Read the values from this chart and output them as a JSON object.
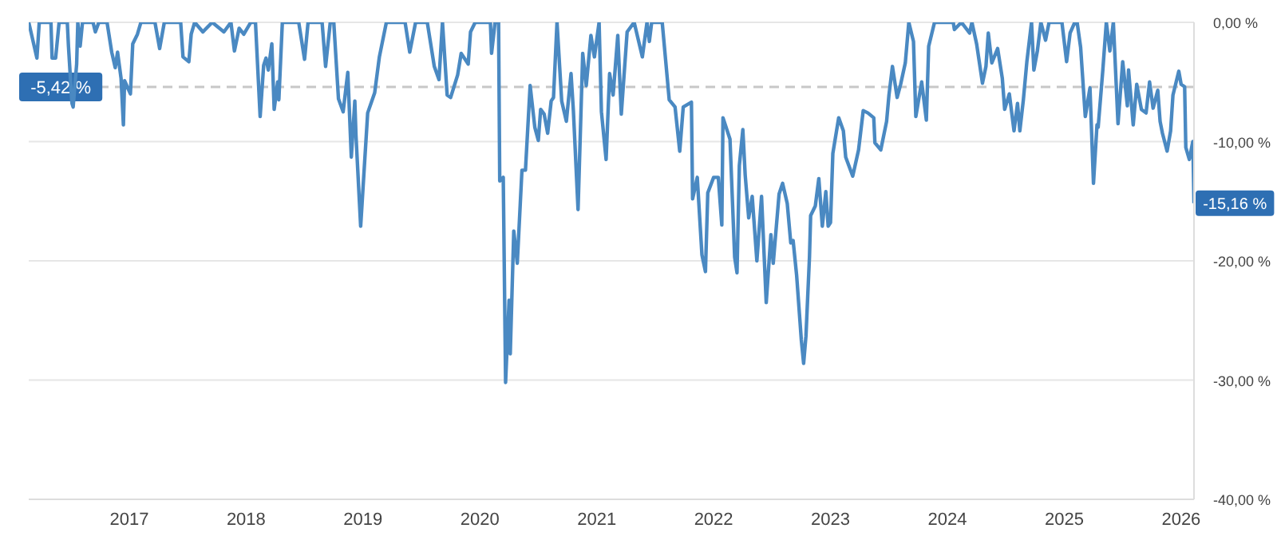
{
  "chart_data": {
    "type": "line",
    "x": [
      2016.14,
      2016.21,
      2016.23,
      2016.33,
      2016.34,
      2016.37,
      2016.4,
      2016.47,
      2016.48,
      2016.51,
      2016.52,
      2016.55,
      2016.56,
      2016.58,
      2016.6,
      2016.69,
      2016.71,
      2016.74,
      2016.81,
      2016.85,
      2016.88,
      2016.9,
      2016.93,
      2016.95,
      2016.96,
      2017.01,
      2017.03,
      2017.07,
      2017.1,
      2017.22,
      2017.26,
      2017.3,
      2017.44,
      2017.46,
      2017.51,
      2017.53,
      2017.56,
      2017.63,
      2017.71,
      2017.81,
      2017.87,
      2017.9,
      2017.94,
      2017.98,
      2018.04,
      2018.08,
      2018.12,
      2018.15,
      2018.17,
      2018.19,
      2018.22,
      2018.24,
      2018.27,
      2018.28,
      2018.31,
      2018.45,
      2018.5,
      2018.53,
      2018.65,
      2018.68,
      2018.72,
      2018.75,
      2018.79,
      2018.83,
      2018.87,
      2018.9,
      2018.93,
      2018.94,
      2018.98,
      2019.04,
      2019.1,
      2019.14,
      2019.2,
      2019.36,
      2019.4,
      2019.45,
      2019.55,
      2019.61,
      2019.65,
      2019.68,
      2019.72,
      2019.75,
      2019.81,
      2019.84,
      2019.9,
      2019.92,
      2019.96,
      2020.09,
      2020.1,
      2020.13,
      2020.16,
      2020.17,
      2020.2,
      2020.22,
      2020.25,
      2020.26,
      2020.29,
      2020.32,
      2020.36,
      2020.39,
      2020.43,
      2020.47,
      2020.5,
      2020.52,
      2020.55,
      2020.58,
      2020.61,
      2020.63,
      2020.66,
      2020.7,
      2020.74,
      2020.78,
      2020.8,
      2020.84,
      2020.88,
      2020.91,
      2020.95,
      2020.98,
      2021.02,
      2021.04,
      2021.08,
      2021.11,
      2021.14,
      2021.18,
      2021.21,
      2021.26,
      2021.32,
      2021.39,
      2021.43,
      2021.45,
      2021.47,
      2021.56,
      2021.62,
      2021.67,
      2021.71,
      2021.74,
      2021.81,
      2021.82,
      2021.86,
      2021.9,
      2021.93,
      2021.95,
      2022.0,
      2022.04,
      2022.07,
      2022.08,
      2022.14,
      2022.18,
      2022.2,
      2022.22,
      2022.25,
      2022.27,
      2022.3,
      2022.33,
      2022.37,
      2022.41,
      2022.45,
      2022.49,
      2022.51,
      2022.56,
      2022.59,
      2022.63,
      2022.66,
      2022.68,
      2022.71,
      2022.75,
      2022.77,
      2022.79,
      2022.82,
      2022.83,
      2022.87,
      2022.9,
      2022.93,
      2022.96,
      2022.98,
      2023.0,
      2023.02,
      2023.07,
      2023.11,
      2023.13,
      2023.19,
      2023.24,
      2023.28,
      2023.32,
      2023.37,
      2023.38,
      2023.43,
      2023.48,
      2023.5,
      2023.53,
      2023.57,
      2023.6,
      2023.64,
      2023.67,
      2023.71,
      2023.73,
      2023.78,
      2023.82,
      2023.84,
      2023.89,
      2024.05,
      2024.06,
      2024.12,
      2024.19,
      2024.21,
      2024.25,
      2024.3,
      2024.33,
      2024.35,
      2024.38,
      2024.43,
      2024.47,
      2024.49,
      2024.53,
      2024.57,
      2024.6,
      2024.62,
      2024.65,
      2024.68,
      2024.72,
      2024.74,
      2024.77,
      2024.8,
      2024.84,
      2024.87,
      2024.98,
      2025.02,
      2025.05,
      2025.09,
      2025.11,
      2025.14,
      2025.18,
      2025.22,
      2025.25,
      2025.28,
      2025.29,
      2025.33,
      2025.36,
      2025.39,
      2025.42,
      2025.46,
      2025.5,
      2025.54,
      2025.55,
      2025.59,
      2025.62,
      2025.66,
      2025.7,
      2025.73,
      2025.76,
      2025.8,
      2025.82,
      2025.84,
      2025.88,
      2025.91,
      2025.93,
      2025.98,
      2026.0,
      2026.03,
      2026.04,
      2026.07,
      2026.1,
      2026.11
    ],
    "series": [
      {
        "color": "#4a89c2",
        "values": [
          0,
          -3.0,
          0,
          0,
          -3.0,
          -3.0,
          0,
          0,
          -2.0,
          -6.8,
          -7.1,
          -3.5,
          0,
          -2.0,
          0,
          0,
          -0.8,
          0,
          0,
          -2.5,
          -3.8,
          -2.5,
          -4.7,
          -8.6,
          -4.9,
          -6.0,
          -1.8,
          -1.0,
          0,
          0,
          -2.2,
          0,
          0,
          -2.9,
          -3.3,
          -1.0,
          0,
          -0.8,
          0,
          -0.8,
          0,
          -2.4,
          -0.5,
          -1.0,
          0,
          0,
          -7.9,
          -3.6,
          -3.0,
          -4.0,
          -1.8,
          -7.3,
          -5.0,
          -6.5,
          0,
          0,
          -3.1,
          0,
          0,
          -3.7,
          0,
          0,
          -6.4,
          -7.5,
          -4.2,
          -11.3,
          -6.6,
          -9.5,
          -17.1,
          -7.6,
          -5.9,
          -2.9,
          0,
          0,
          -2.5,
          0,
          0,
          -3.7,
          -4.8,
          0,
          -6.1,
          -6.3,
          -4.4,
          -2.6,
          -3.5,
          -0.8,
          0,
          0,
          -2.6,
          0,
          0,
          -13.3,
          -13.0,
          -30.2,
          -23.3,
          -27.8,
          -17.5,
          -20.2,
          -12.4,
          -12.4,
          -5.3,
          -8.8,
          -9.9,
          -7.3,
          -7.7,
          -9.3,
          -6.6,
          -6.3,
          0,
          -6.6,
          -8.3,
          -4.3,
          -7.4,
          -15.7,
          -2.6,
          -5.3,
          -1.1,
          -2.9,
          0,
          -7.5,
          -11.5,
          -4.3,
          -6.1,
          -1.1,
          -7.7,
          -0.8,
          0,
          -2.9,
          0,
          -1.6,
          0,
          0,
          -6.5,
          -7.1,
          -10.8,
          -7.1,
          -6.7,
          -14.8,
          -13.0,
          -19.5,
          -20.9,
          -14.3,
          -13.0,
          -13.0,
          -17.0,
          -8.0,
          -9.8,
          -19.7,
          -21.0,
          -12.0,
          -9.0,
          -12.8,
          -16.4,
          -14.6,
          -20.0,
          -14.6,
          -23.5,
          -17.8,
          -20.2,
          -14.4,
          -13.5,
          -15.2,
          -18.5,
          -18.3,
          -21.2,
          -26.6,
          -28.6,
          -26.3,
          -19.7,
          -16.2,
          -15.4,
          -13.1,
          -17.1,
          -14.2,
          -17.1,
          -16.8,
          -11.0,
          -8.0,
          -9.1,
          -11.3,
          -12.9,
          -10.7,
          -7.4,
          -7.6,
          -8.0,
          -10.1,
          -10.7,
          -8.3,
          -6.1,
          -3.7,
          -6.3,
          -5.2,
          -3.4,
          0,
          -1.6,
          -7.9,
          -5.0,
          -8.2,
          -2.0,
          0,
          0,
          -0.6,
          0,
          -0.9,
          0,
          -1.8,
          -5.1,
          -3.7,
          -0.9,
          -3.4,
          -2.2,
          -4.7,
          -7.3,
          -6.0,
          -9.1,
          -6.8,
          -9.1,
          -6.5,
          -3.3,
          0,
          -4.0,
          -2.4,
          0,
          -1.5,
          0,
          0,
          -3.3,
          -0.9,
          0,
          0,
          -2.1,
          -7.9,
          -5.5,
          -13.5,
          -8.6,
          -8.8,
          -4.0,
          0,
          -2.4,
          0,
          -8.5,
          -3.3,
          -7.0,
          -4.0,
          -8.6,
          -5.2,
          -7.3,
          -7.6,
          -5.0,
          -7.2,
          -5.7,
          -8.3,
          -9.3,
          -10.8,
          -9.1,
          -6.1,
          -4.1,
          -5.2,
          -5.4,
          -10.5,
          -11.5,
          -10.0,
          -15.16
        ]
      }
    ],
    "xlim": [
      2016.14,
      2026.11
    ],
    "xticks": [
      2017,
      2018,
      2019,
      2020,
      2021,
      2022,
      2023,
      2024,
      2025,
      2026
    ],
    "ylim": [
      -40,
      0
    ],
    "yticks": [
      {
        "value": 0,
        "label": "0,00 %"
      },
      {
        "value": -10,
        "label": "-10,00 %"
      },
      {
        "value": -20,
        "label": "-20,00 %"
      },
      {
        "value": -30,
        "label": "-30,00 %"
      },
      {
        "value": -40,
        "label": "-40,00 %"
      }
    ],
    "grid": "y",
    "marker": "none",
    "line_style": "solid",
    "ref_lines": [
      {
        "axis": "y",
        "value": -5.42,
        "label": "-5,42 %",
        "color": "#c8c8c8",
        "line_style": "dashed"
      }
    ],
    "annotations": [
      {
        "text": "-15,16 %",
        "x": 2026.11,
        "y": -15.16
      }
    ]
  }
}
